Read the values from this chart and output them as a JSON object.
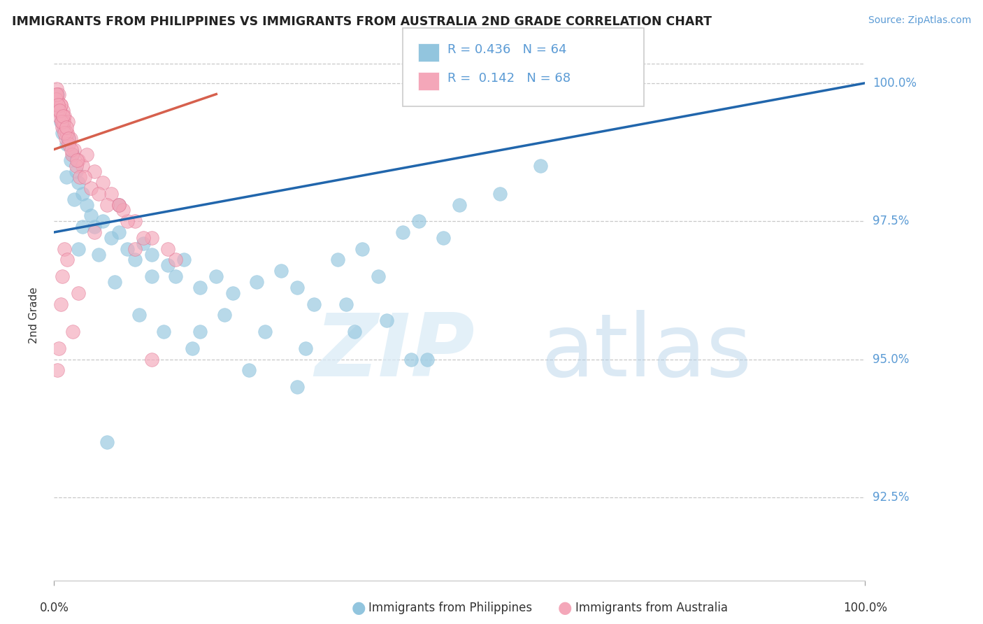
{
  "title": "IMMIGRANTS FROM PHILIPPINES VS IMMIGRANTS FROM AUSTRALIA 2ND GRADE CORRELATION CHART",
  "source": "Source: ZipAtlas.com",
  "ylabel": "2nd Grade",
  "x_axis_labels": [
    "Immigrants from Philippines",
    "Immigrants from Australia"
  ],
  "y_ticks": [
    92.5,
    95.0,
    97.5,
    100.0
  ],
  "y_tick_labels": [
    "92.5%",
    "95.0%",
    "97.5%",
    "100.0%"
  ],
  "legend_r1": "R = 0.436",
  "legend_n1": "N = 64",
  "legend_r2": "R =  0.142",
  "legend_n2": "N = 68",
  "blue_color": "#92c5de",
  "pink_color": "#f4a7b9",
  "trend_blue": "#2166ac",
  "trend_pink": "#d6604d",
  "ylim_min": 91.0,
  "ylim_max": 100.6,
  "xlim_min": 0,
  "xlim_max": 100,
  "phil_x": [
    0.4,
    0.6,
    0.8,
    1.0,
    1.2,
    1.5,
    1.8,
    2.0,
    2.3,
    2.7,
    3.0,
    3.5,
    4.0,
    4.5,
    5.0,
    6.0,
    7.0,
    8.0,
    9.0,
    10.0,
    11.0,
    12.0,
    14.0,
    15.0,
    16.0,
    18.0,
    20.0,
    22.0,
    25.0,
    28.0,
    30.0,
    32.0,
    35.0,
    38.0,
    40.0,
    43.0,
    45.0,
    48.0,
    50.0,
    55.0,
    60.0,
    1.5,
    2.5,
    3.5,
    5.5,
    7.5,
    10.5,
    13.5,
    17.0,
    21.0,
    26.0,
    31.0,
    36.0,
    41.0,
    46.0,
    8.0,
    12.0,
    18.0,
    24.0,
    30.0,
    37.0,
    44.0,
    3.0,
    6.5
  ],
  "phil_y": [
    99.8,
    99.5,
    99.3,
    99.1,
    99.2,
    98.9,
    99.0,
    98.6,
    98.7,
    98.4,
    98.2,
    98.0,
    97.8,
    97.6,
    97.4,
    97.5,
    97.2,
    97.3,
    97.0,
    96.8,
    97.1,
    96.9,
    96.7,
    96.5,
    96.8,
    96.3,
    96.5,
    96.2,
    96.4,
    96.6,
    96.3,
    96.0,
    96.8,
    97.0,
    96.5,
    97.3,
    97.5,
    97.2,
    97.8,
    98.0,
    98.5,
    98.3,
    97.9,
    97.4,
    96.9,
    96.4,
    95.8,
    95.5,
    95.2,
    95.8,
    95.5,
    95.2,
    96.0,
    95.7,
    95.0,
    97.8,
    96.5,
    95.5,
    94.8,
    94.5,
    95.5,
    95.0,
    97.0,
    93.5
  ],
  "aus_x": [
    0.2,
    0.3,
    0.4,
    0.5,
    0.6,
    0.7,
    0.8,
    0.9,
    1.0,
    1.1,
    1.2,
    1.3,
    1.5,
    1.7,
    2.0,
    2.5,
    3.0,
    3.5,
    4.0,
    5.0,
    6.0,
    7.0,
    8.0,
    10.0,
    12.0,
    15.0,
    0.2,
    0.4,
    0.6,
    0.8,
    1.0,
    1.2,
    1.4,
    1.6,
    1.8,
    2.2,
    2.7,
    3.2,
    4.5,
    6.5,
    9.0,
    11.0,
    14.0,
    0.3,
    0.5,
    0.7,
    0.9,
    1.1,
    1.3,
    1.5,
    1.8,
    2.1,
    2.8,
    3.8,
    5.5,
    8.5,
    0.4,
    0.6,
    0.8,
    1.0,
    1.3,
    1.6,
    2.3,
    3.0,
    5.0,
    8.0,
    12.0,
    10.0
  ],
  "aus_y": [
    99.8,
    99.9,
    99.7,
    99.6,
    99.8,
    99.5,
    99.6,
    99.4,
    99.3,
    99.5,
    99.2,
    99.4,
    99.1,
    99.3,
    99.0,
    98.8,
    98.6,
    98.5,
    98.7,
    98.4,
    98.2,
    98.0,
    97.8,
    97.5,
    97.2,
    96.8,
    99.7,
    99.5,
    99.4,
    99.6,
    99.2,
    99.3,
    99.0,
    99.1,
    98.9,
    98.7,
    98.5,
    98.3,
    98.1,
    97.8,
    97.5,
    97.2,
    97.0,
    99.8,
    99.6,
    99.5,
    99.3,
    99.4,
    99.1,
    99.2,
    99.0,
    98.8,
    98.6,
    98.3,
    98.0,
    97.7,
    94.8,
    95.2,
    96.0,
    96.5,
    97.0,
    96.8,
    95.5,
    96.2,
    97.3,
    97.8,
    95.0,
    97.0
  ]
}
